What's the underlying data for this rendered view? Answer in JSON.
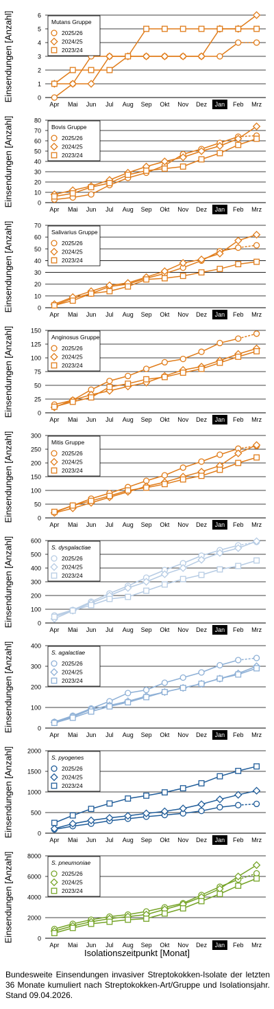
{
  "x_axis_title": "Isolationszeitpunkt [Monat]",
  "caption": "Bundesweite Einsendungen invasiver Streptokokken-Isolate der letzten 36 Monate kumuliert nach Streptokokken-Art/Gruppe und Isolationsjahr. Stand 09.04.2026.",
  "chart_data": [
    {
      "type": "line",
      "title": "Mutans Gruppe",
      "title_italic": false,
      "ylabel": "Einsendungen [Anzahl]",
      "categories": [
        "Apr",
        "Mai",
        "Jun",
        "Jul",
        "Aug",
        "Sep",
        "Okt",
        "Nov",
        "Dez",
        "Jan",
        "Feb",
        "Mrz"
      ],
      "highlight_category": "Jan",
      "ylim": [
        0,
        6
      ],
      "yticks": [
        0,
        1,
        2,
        3,
        4,
        5,
        6
      ],
      "color": "#E07C1A",
      "grid": true,
      "legend_position": "top-left",
      "series": [
        {
          "name": "2025/26",
          "marker": "circle",
          "values": [
            0,
            1,
            3,
            3,
            3,
            3,
            3,
            3,
            3,
            3,
            4,
            4
          ],
          "dashed_last": true
        },
        {
          "name": "2024/25",
          "marker": "diamond",
          "values": [
            1,
            1,
            1,
            3,
            3,
            3,
            3,
            3,
            3,
            5,
            5,
            6
          ],
          "dashed_last": false
        },
        {
          "name": "2023/24",
          "marker": "square",
          "values": [
            1,
            2,
            2,
            2,
            3,
            5,
            5,
            5,
            5,
            5,
            5,
            5
          ],
          "dashed_last": false
        }
      ]
    },
    {
      "type": "line",
      "title": "Bovis Gruppe",
      "title_italic": false,
      "ylabel": "Einsendungen [Anzahl]",
      "categories": [
        "Apr",
        "Mai",
        "Jun",
        "Jul",
        "Aug",
        "Sep",
        "Okt",
        "Nov",
        "Dez",
        "Jan",
        "Feb",
        "Mrz"
      ],
      "highlight_category": "Jan",
      "ylim": [
        0,
        80
      ],
      "yticks": [
        0,
        10,
        20,
        30,
        40,
        50,
        60,
        70,
        80
      ],
      "color": "#E07C1A",
      "grid": true,
      "legend_position": "top-left",
      "series": [
        {
          "name": "2025/26",
          "marker": "circle",
          "values": [
            3,
            5,
            8,
            17,
            24,
            29,
            36,
            47,
            52,
            58,
            64,
            65
          ],
          "dashed_last": true
        },
        {
          "name": "2024/25",
          "marker": "diamond",
          "values": [
            8,
            12,
            16,
            22,
            29,
            35,
            40,
            44,
            50,
            55,
            62,
            74
          ],
          "dashed_last": false
        },
        {
          "name": "2023/24",
          "marker": "square",
          "values": [
            6,
            9,
            15,
            19,
            27,
            31,
            33,
            35,
            42,
            48,
            56,
            62
          ],
          "dashed_last": false
        }
      ]
    },
    {
      "type": "line",
      "title": "Salivarius Gruppe",
      "title_italic": false,
      "ylabel": "Einsendungen [Anzahl]",
      "categories": [
        "Apr",
        "Mai",
        "Jun",
        "Jul",
        "Aug",
        "Sep",
        "Okt",
        "Nov",
        "Dez",
        "Jan",
        "Feb",
        "Mrz"
      ],
      "highlight_category": "Jan",
      "ylim": [
        0,
        70
      ],
      "yticks": [
        0,
        10,
        20,
        30,
        40,
        50,
        60,
        70
      ],
      "color": "#E07C1A",
      "grid": true,
      "legend_position": "top-left",
      "series": [
        {
          "name": "2025/26",
          "marker": "circle",
          "values": [
            2,
            8,
            12,
            18,
            20,
            25,
            29,
            34,
            40,
            48,
            51,
            53
          ],
          "dashed_last": true
        },
        {
          "name": "2024/25",
          "marker": "diamond",
          "values": [
            3,
            9,
            14,
            19,
            21,
            26,
            31,
            38,
            41,
            46,
            57,
            62
          ],
          "dashed_last": false
        },
        {
          "name": "2023/24",
          "marker": "square",
          "values": [
            2,
            6,
            12,
            14,
            18,
            24,
            25,
            27,
            30,
            33,
            37,
            39
          ],
          "dashed_last": false
        }
      ]
    },
    {
      "type": "line",
      "title": "Anginosus Gruppe",
      "title_italic": false,
      "ylabel": "Einsendungen [Anzahl]",
      "categories": [
        "Apr",
        "Mai",
        "Jun",
        "Jul",
        "Aug",
        "Sep",
        "Okt",
        "Nov",
        "Dez",
        "Jan",
        "Feb",
        "Mrz"
      ],
      "highlight_category": "Jan",
      "ylim": [
        0,
        150
      ],
      "yticks": [
        0,
        25,
        50,
        75,
        100,
        125,
        150
      ],
      "color": "#E07C1A",
      "grid": true,
      "legend_position": "top-left",
      "series": [
        {
          "name": "2025/26",
          "marker": "circle",
          "values": [
            15,
            23,
            42,
            58,
            67,
            80,
            92,
            98,
            111,
            127,
            135,
            144
          ],
          "dashed_last": true
        },
        {
          "name": "2024/25",
          "marker": "diamond",
          "values": [
            10,
            23,
            33,
            40,
            48,
            55,
            67,
            78,
            84,
            95,
            107,
            117
          ],
          "dashed_last": false
        },
        {
          "name": "2023/24",
          "marker": "square",
          "values": [
            11,
            20,
            28,
            47,
            53,
            61,
            65,
            73,
            80,
            91,
            102,
            112
          ],
          "dashed_last": false
        }
      ]
    },
    {
      "type": "line",
      "title": "Mitis Gruppe",
      "title_italic": false,
      "ylabel": "Einsendungen [Anzahl]",
      "categories": [
        "Apr",
        "Mai",
        "Jun",
        "Jul",
        "Aug",
        "Sep",
        "Okt",
        "Nov",
        "Dez",
        "Jan",
        "Feb",
        "Mrz"
      ],
      "highlight_category": "Jan",
      "ylim": [
        0,
        300
      ],
      "yticks": [
        0,
        50,
        100,
        150,
        200,
        250,
        300
      ],
      "color": "#E07C1A",
      "grid": true,
      "legend_position": "top-left",
      "series": [
        {
          "name": "2025/26",
          "marker": "circle",
          "values": [
            20,
            45,
            70,
            90,
            112,
            135,
            155,
            183,
            205,
            230,
            252,
            262
          ],
          "dashed_last": true
        },
        {
          "name": "2024/25",
          "marker": "diamond",
          "values": [
            18,
            35,
            55,
            75,
            95,
            115,
            130,
            150,
            168,
            190,
            235,
            265
          ],
          "dashed_last": false
        },
        {
          "name": "2023/24",
          "marker": "square",
          "values": [
            22,
            45,
            62,
            80,
            100,
            110,
            123,
            140,
            153,
            175,
            200,
            220
          ],
          "dashed_last": false
        }
      ]
    },
    {
      "type": "line",
      "title": "S. dysgalactiae",
      "title_italic": true,
      "ylabel": "Einsendungen [Anzahl]",
      "categories": [
        "Apr",
        "Mai",
        "Jun",
        "Jul",
        "Aug",
        "Sep",
        "Okt",
        "Nov",
        "Dez",
        "Jan",
        "Feb",
        "Mrz"
      ],
      "highlight_category": "Jan",
      "ylim": [
        0,
        600
      ],
      "yticks": [
        0,
        100,
        200,
        300,
        400,
        500,
        600
      ],
      "color": "#B7CCE4",
      "grid": true,
      "legend_position": "top-left",
      "series": [
        {
          "name": "2025/26",
          "marker": "circle",
          "values": [
            55,
            95,
            155,
            215,
            270,
            330,
            385,
            435,
            490,
            530,
            565,
            590
          ],
          "dashed_last": true
        },
        {
          "name": "2024/25",
          "marker": "diamond",
          "values": [
            30,
            90,
            145,
            200,
            255,
            300,
            355,
            400,
            460,
            510,
            545,
            595
          ],
          "dashed_last": false
        },
        {
          "name": "2023/24",
          "marker": "square",
          "values": [
            45,
            90,
            130,
            175,
            190,
            235,
            280,
            320,
            350,
            390,
            415,
            455
          ],
          "dashed_last": false
        }
      ]
    },
    {
      "type": "line",
      "title": "S. agalactiae",
      "title_italic": true,
      "ylabel": "Einsendungen [Anzahl]",
      "categories": [
        "Apr",
        "Mai",
        "Jun",
        "Jul",
        "Aug",
        "Sep",
        "Okt",
        "Nov",
        "Dez",
        "Jan",
        "Feb",
        "Mrz"
      ],
      "highlight_category": "Jan",
      "ylim": [
        0,
        400
      ],
      "yticks": [
        0,
        100,
        200,
        300,
        400
      ],
      "color": "#8EB0D6",
      "grid": true,
      "legend_position": "top-left",
      "series": [
        {
          "name": "2025/26",
          "marker": "circle",
          "values": [
            30,
            60,
            95,
            130,
            170,
            185,
            220,
            245,
            270,
            305,
            330,
            340
          ],
          "dashed_last": true
        },
        {
          "name": "2024/25",
          "marker": "diamond",
          "values": [
            28,
            55,
            90,
            110,
            130,
            155,
            175,
            195,
            215,
            240,
            265,
            300
          ],
          "dashed_last": false
        },
        {
          "name": "2023/24",
          "marker": "square",
          "values": [
            25,
            50,
            80,
            105,
            125,
            150,
            175,
            195,
            215,
            240,
            260,
            290
          ],
          "dashed_last": false
        }
      ]
    },
    {
      "type": "line",
      "title": "S. pyogenes",
      "title_italic": true,
      "ylabel": "Einsendungen [Anzahl]",
      "categories": [
        "Apr",
        "Mai",
        "Jun",
        "Jul",
        "Aug",
        "Sep",
        "Okt",
        "Nov",
        "Dez",
        "Jan",
        "Feb",
        "Mrz"
      ],
      "highlight_category": "Jan",
      "ylim": [
        0,
        2000
      ],
      "yticks": [
        0,
        500,
        1000,
        1500,
        2000
      ],
      "color": "#1F5C99",
      "grid": true,
      "legend_position": "top-left",
      "series": [
        {
          "name": "2025/26",
          "marker": "circle",
          "values": [
            90,
            170,
            230,
            300,
            350,
            400,
            440,
            480,
            540,
            630,
            680,
            710
          ],
          "dashed_last": true
        },
        {
          "name": "2024/25",
          "marker": "diamond",
          "values": [
            110,
            230,
            310,
            370,
            420,
            480,
            530,
            600,
            700,
            820,
            930,
            1030
          ],
          "dashed_last": false
        },
        {
          "name": "2023/24",
          "marker": "square",
          "values": [
            250,
            430,
            590,
            720,
            840,
            910,
            990,
            1090,
            1210,
            1380,
            1510,
            1620
          ],
          "dashed_last": false
        }
      ]
    },
    {
      "type": "line",
      "title": "S. pneumoniae",
      "title_italic": true,
      "ylabel": "Einsendungen [Anzahl]",
      "categories": [
        "Apr",
        "Mai",
        "Jun",
        "Jul",
        "Aug",
        "Sep",
        "Okt",
        "Nov",
        "Dez",
        "Jan",
        "Feb",
        "Mrz"
      ],
      "highlight_category": "Jan",
      "ylim": [
        0,
        8000
      ],
      "yticks": [
        0,
        2000,
        4000,
        6000,
        8000
      ],
      "color": "#76A428",
      "grid": true,
      "legend_position": "top-left",
      "series": [
        {
          "name": "2025/26",
          "marker": "circle",
          "values": [
            900,
            1400,
            1800,
            2100,
            2300,
            2600,
            3000,
            3400,
            4200,
            5000,
            5700,
            6300
          ],
          "dashed_last": true
        },
        {
          "name": "2024/25",
          "marker": "diamond",
          "values": [
            700,
            1200,
            1600,
            1900,
            2100,
            2300,
            2800,
            3300,
            4000,
            4800,
            6000,
            7100
          ],
          "dashed_last": false
        },
        {
          "name": "2023/24",
          "marker": "square",
          "values": [
            500,
            1000,
            1400,
            1600,
            1800,
            1900,
            2400,
            2900,
            3600,
            4300,
            5100,
            5800
          ],
          "dashed_last": false
        }
      ]
    }
  ]
}
